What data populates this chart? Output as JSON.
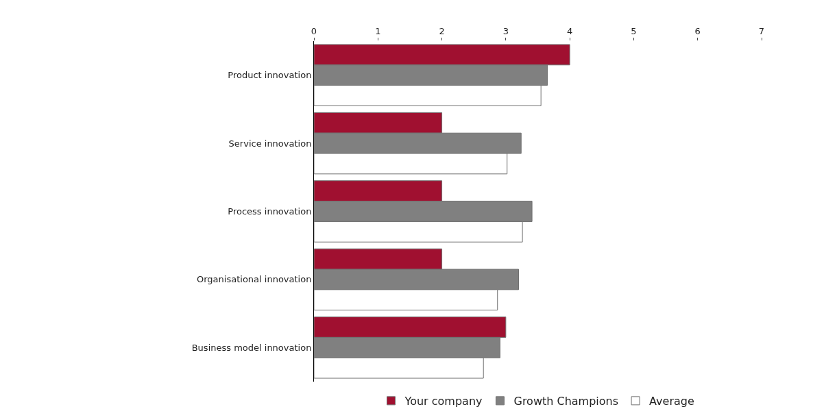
{
  "chart_data": {
    "type": "bar",
    "orientation": "horizontal",
    "categories": [
      "Product innovation",
      "Service innovation",
      "Process innovation",
      "Organisational innovation",
      "Business model innovation"
    ],
    "series": [
      {
        "name": "Your company",
        "color": "#a01030",
        "values": [
          4.0,
          2.0,
          2.0,
          2.0,
          3.0
        ]
      },
      {
        "name": "Growth Champions",
        "color": "#808080",
        "values": [
          3.65,
          3.24,
          3.41,
          3.2,
          2.91
        ]
      },
      {
        "name": "Average",
        "color": "#ffffff",
        "values": [
          3.55,
          3.02,
          3.26,
          2.87,
          2.65
        ]
      }
    ],
    "xlim": [
      0,
      7
    ],
    "xticks": [
      0,
      1,
      2,
      3,
      4,
      5,
      6,
      7
    ],
    "legend": "bottom"
  }
}
